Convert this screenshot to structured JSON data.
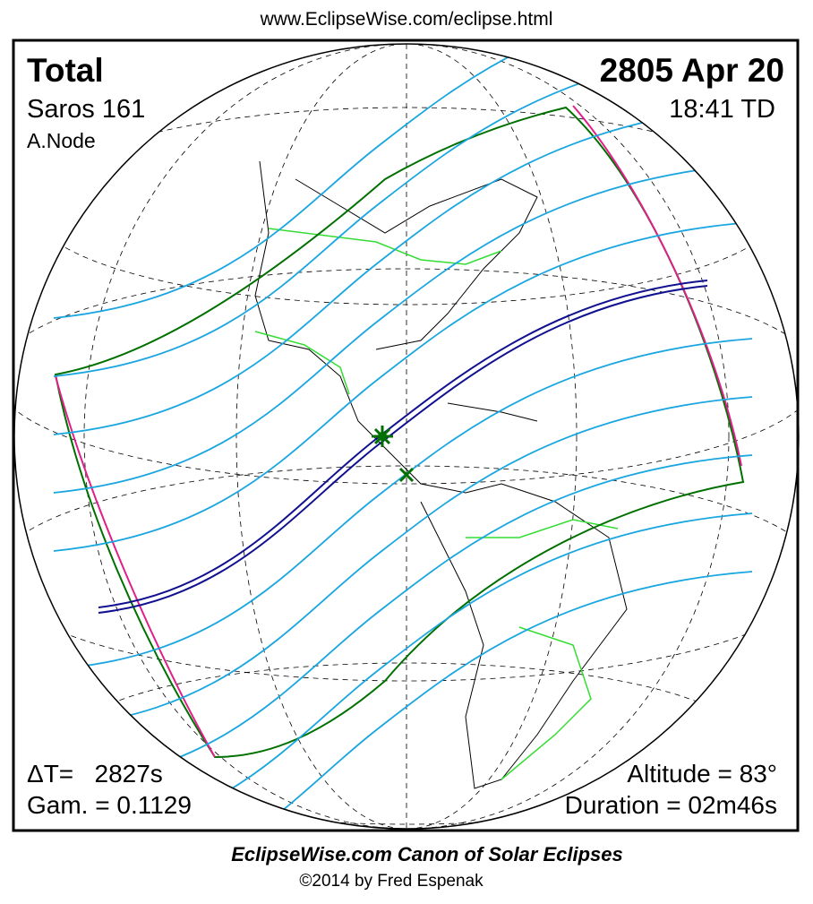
{
  "header": {
    "url": "www.EclipseWise.com/eclipse.html"
  },
  "panel": {
    "type": "Total",
    "date": "2805 Apr 20",
    "saros": "Saros 161",
    "time": "18:41 TD",
    "node": "A.Node",
    "delta_t": "ΔT=   2827s",
    "gamma": "Gam. = 0.1129",
    "altitude": "Altitude = 83°",
    "duration": "Duration = 02m46s"
  },
  "footer": {
    "title": "EclipseWise.com Canon of Solar Eclipses",
    "credit": "©2014 by Fred Espenak"
  }
}
